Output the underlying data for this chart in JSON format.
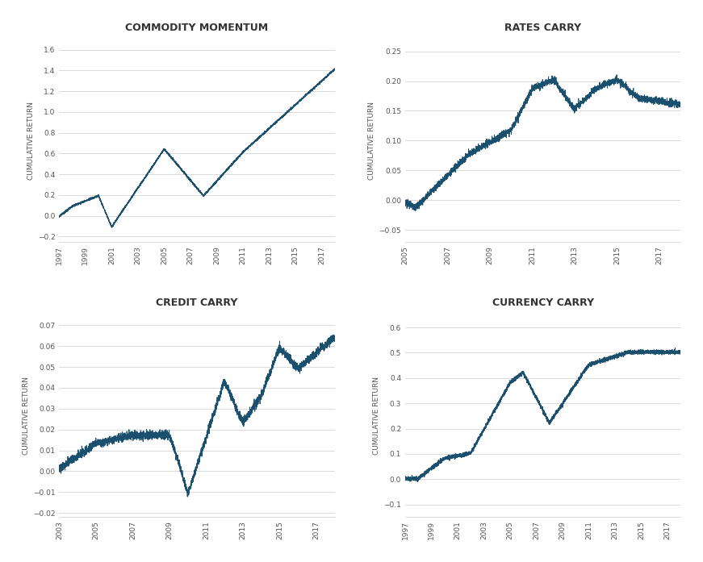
{
  "line_color": "#1a4f6e",
  "bg_color": "#ffffff",
  "grid_color": "#cccccc",
  "title_color": "#333333",
  "tick_color": "#555555",
  "ylabel": "CUMULATIVE RETURN",
  "titles": [
    "COMMODITY MOMENTUM",
    "RATES CARRY",
    "CREDIT CARRY",
    "CURRENCY CARRY"
  ],
  "cm_xlim": [
    1997,
    2018
  ],
  "cm_ylim": [
    -0.25,
    1.7
  ],
  "cm_yticks": [
    -0.2,
    0,
    0.2,
    0.4,
    0.6,
    0.8,
    1.0,
    1.2,
    1.4,
    1.6
  ],
  "cm_xticks": [
    1997,
    1999,
    2001,
    2003,
    2005,
    2007,
    2009,
    2011,
    2013,
    2015,
    2017
  ],
  "rc_xlim": [
    2005,
    2018
  ],
  "rc_ylim": [
    -0.07,
    0.27
  ],
  "rc_yticks": [
    -0.05,
    0,
    0.05,
    0.1,
    0.15,
    0.2,
    0.25
  ],
  "rc_xticks": [
    2005,
    2007,
    2009,
    2011,
    2013,
    2015,
    2017
  ],
  "cc_xlim": [
    2003,
    2018
  ],
  "cc_ylim": [
    -0.022,
    0.075
  ],
  "cc_yticks": [
    -0.02,
    -0.01,
    0,
    0.01,
    0.02,
    0.03,
    0.04,
    0.05,
    0.06,
    0.07
  ],
  "cc_xticks": [
    2003,
    2005,
    2007,
    2009,
    2011,
    2013,
    2015,
    2017
  ],
  "cur_xlim": [
    1997,
    2018
  ],
  "cur_ylim": [
    -0.15,
    0.65
  ],
  "cur_yticks": [
    -0.1,
    0,
    0.1,
    0.2,
    0.3,
    0.4,
    0.5,
    0.6
  ],
  "cur_xticks": [
    1997,
    1999,
    2001,
    2003,
    2005,
    2007,
    2009,
    2011,
    2013,
    2015,
    2017
  ]
}
